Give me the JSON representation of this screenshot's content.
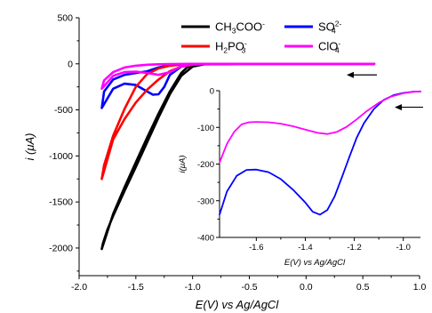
{
  "chart_data": [
    {
      "type": "line",
      "title": "",
      "xlabel": "E(V) vs Ag/AgCl",
      "ylabel": "i (μA)",
      "xlim": [
        -2.0,
        1.0
      ],
      "ylim": [
        -2300,
        500
      ],
      "x_ticks": [
        "-2.0",
        "-1.5",
        "-1.0",
        "-0.5",
        "0.0",
        "0.5",
        "1.0"
      ],
      "y_ticks": [
        "500",
        "0",
        "-500",
        "-1000",
        "-1500",
        "-2000"
      ],
      "legend": {
        "placement": "top",
        "entries": [
          {
            "base": "CH",
            "sub1": "3",
            "mid": "COO",
            "sup": "-",
            "sub2": "",
            "color": "#000000"
          },
          {
            "base": "SO",
            "sub1": "",
            "mid": "",
            "sup": "2-",
            "sub2": "4",
            "color": "#0000ff"
          },
          {
            "base": "H",
            "sub1": "2",
            "mid": "PO",
            "sup": "-",
            "sub2": "3",
            "color": "#ff0000"
          },
          {
            "base": "ClO",
            "sub1": "",
            "mid": "",
            "sup": "-",
            "sub2": "4",
            "color": "#ff00ff"
          }
        ]
      },
      "annotations": [
        "scan-direction-arrow-left"
      ],
      "series": [
        {
          "color": "#000000",
          "x": [
            0.6,
            0.2,
            -0.2,
            -0.6,
            -0.9,
            -1.0,
            -1.05,
            -1.1,
            -1.2,
            -1.3,
            -1.4,
            -1.5,
            -1.6,
            -1.7,
            -1.8,
            -1.79,
            -1.75,
            -1.7,
            -1.6,
            -1.5,
            -1.4,
            -1.3,
            -1.2,
            -1.1,
            -1.0,
            -0.9,
            -0.6,
            0.6
          ],
          "y": [
            0,
            0,
            0,
            0,
            -5,
            -15,
            -40,
            -100,
            -300,
            -540,
            -800,
            -1070,
            -1340,
            -1630,
            -2010,
            -1950,
            -1800,
            -1650,
            -1380,
            -1120,
            -850,
            -580,
            -330,
            -130,
            -30,
            -5,
            0,
            0
          ]
        },
        {
          "color": "#0000ff",
          "x": [
            0.6,
            0.2,
            -0.2,
            -0.6,
            -0.9,
            -1.0,
            -1.1,
            -1.2,
            -1.25,
            -1.3,
            -1.35,
            -1.4,
            -1.5,
            -1.6,
            -1.7,
            -1.8,
            -1.78,
            -1.7,
            -1.6,
            -1.5,
            -1.4,
            -1.3,
            -1.2,
            -1.0,
            -0.6,
            0.6
          ],
          "y": [
            0,
            0,
            0,
            0,
            -3,
            -10,
            -30,
            -120,
            -250,
            -330,
            -335,
            -300,
            -230,
            -215,
            -270,
            -480,
            -300,
            -170,
            -120,
            -100,
            -80,
            -40,
            -15,
            -3,
            0,
            0
          ]
        },
        {
          "color": "#ff0000",
          "x": [
            0.6,
            0.2,
            -0.2,
            -0.6,
            -0.9,
            -1.0,
            -1.1,
            -1.2,
            -1.3,
            -1.4,
            -1.5,
            -1.6,
            -1.7,
            -1.8,
            -1.78,
            -1.7,
            -1.6,
            -1.5,
            -1.4,
            -1.3,
            -1.2,
            -1.1,
            -1.0,
            -0.6,
            0.6
          ],
          "y": [
            0,
            0,
            0,
            0,
            -3,
            -10,
            -30,
            -80,
            -170,
            -280,
            -420,
            -600,
            -820,
            -1250,
            -1100,
            -780,
            -490,
            -250,
            -110,
            -50,
            -20,
            -8,
            -3,
            0,
            0
          ]
        },
        {
          "color": "#ff00ff",
          "x": [
            0.6,
            0.2,
            -0.2,
            -0.6,
            -0.9,
            -1.0,
            -1.1,
            -1.2,
            -1.3,
            -1.4,
            -1.5,
            -1.6,
            -1.7,
            -1.8,
            -1.78,
            -1.7,
            -1.6,
            -1.5,
            -1.4,
            -1.3,
            -1.2,
            -1.0,
            -0.6,
            0.6
          ],
          "y": [
            0,
            0,
            0,
            0,
            -2,
            -8,
            -25,
            -90,
            -120,
            -100,
            -85,
            -90,
            -130,
            -270,
            -180,
            -90,
            -40,
            -20,
            -10,
            -5,
            -2,
            0,
            0,
            0
          ]
        }
      ]
    },
    {
      "type": "line",
      "title": "",
      "xlabel": "E(V) vs Ag/AgCl",
      "ylabel": "i(μA)",
      "xlim": [
        -1.75,
        -0.93
      ],
      "ylim": [
        -400,
        0
      ],
      "x_ticks": [
        "-1.6",
        "-1.4",
        "-1.2",
        "-1.0"
      ],
      "y_ticks": [
        "0",
        "-100",
        "-200",
        "-300",
        "-400"
      ],
      "annotations": [
        "scan-direction-arrow-left"
      ],
      "series": [
        {
          "color": "#0000ff",
          "x": [
            -1.75,
            -1.72,
            -1.68,
            -1.64,
            -1.6,
            -1.55,
            -1.5,
            -1.45,
            -1.4,
            -1.37,
            -1.34,
            -1.31,
            -1.28,
            -1.25,
            -1.22,
            -1.19,
            -1.16,
            -1.12,
            -1.08,
            -1.04,
            -1.0,
            -0.96,
            -0.93
          ],
          "y": [
            -338,
            -275,
            -232,
            -216,
            -215,
            -222,
            -241,
            -270,
            -305,
            -330,
            -338,
            -325,
            -288,
            -235,
            -180,
            -128,
            -88,
            -50,
            -25,
            -12,
            -6,
            -3,
            -2
          ]
        },
        {
          "color": "#ff00ff",
          "x": [
            -1.75,
            -1.72,
            -1.69,
            -1.66,
            -1.63,
            -1.6,
            -1.55,
            -1.5,
            -1.45,
            -1.4,
            -1.35,
            -1.31,
            -1.27,
            -1.23,
            -1.19,
            -1.15,
            -1.1,
            -1.05,
            -1.0,
            -0.96,
            -0.93
          ],
          "y": [
            -196,
            -145,
            -112,
            -92,
            -86,
            -85,
            -86,
            -90,
            -97,
            -106,
            -115,
            -118,
            -112,
            -98,
            -78,
            -56,
            -33,
            -16,
            -7,
            -3,
            -2
          ]
        }
      ]
    }
  ]
}
